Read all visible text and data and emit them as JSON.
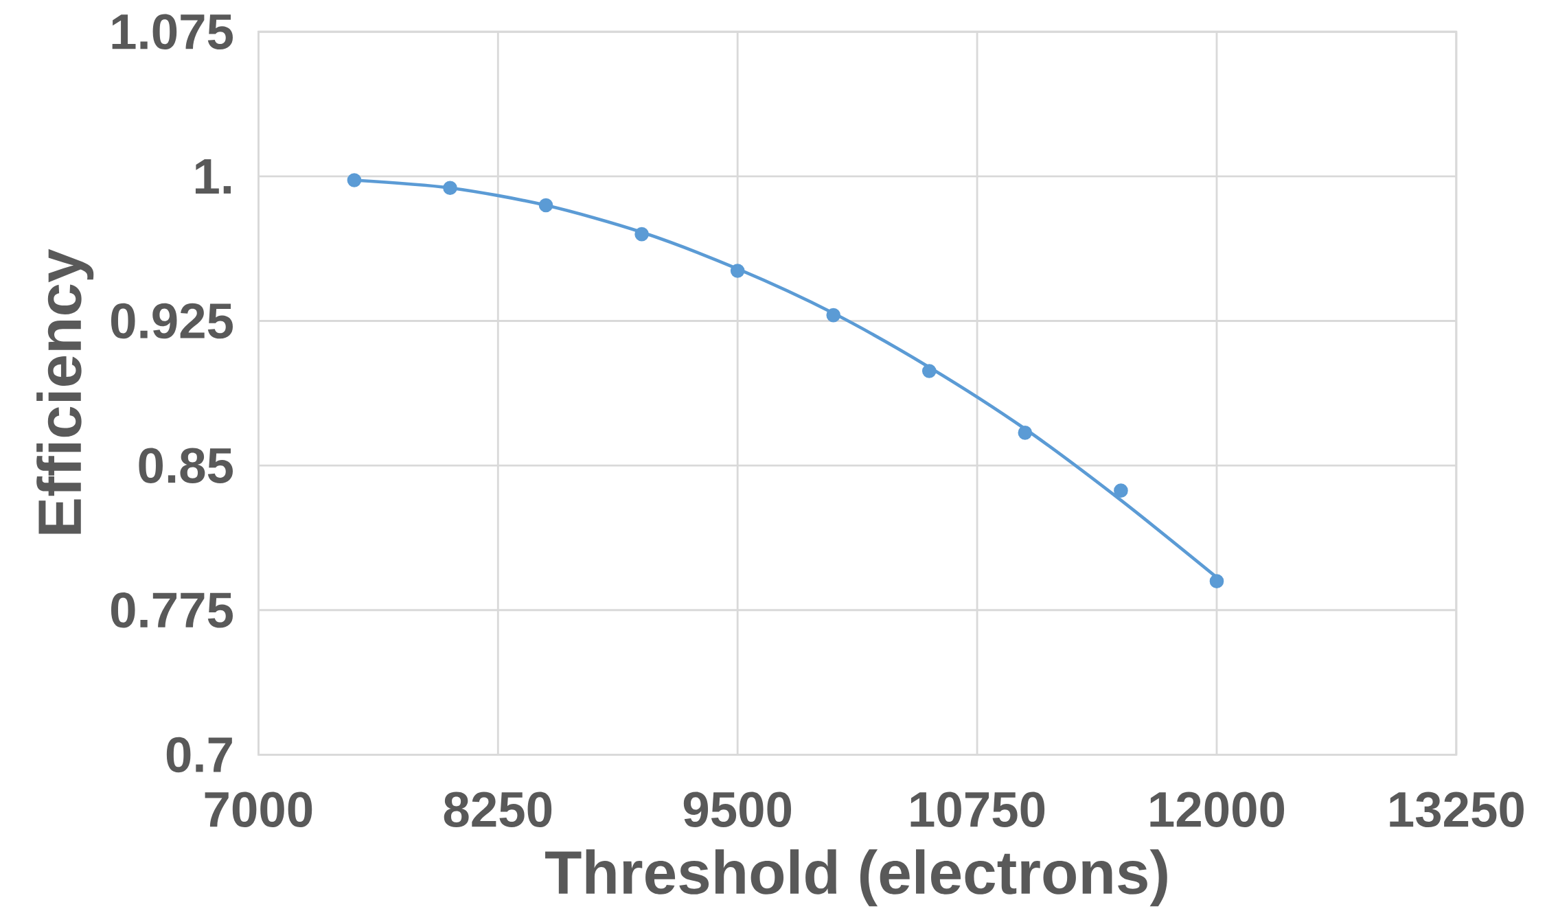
{
  "chart_data": {
    "type": "scatter",
    "xlabel": "Threshold (electrons)",
    "ylabel": "Efficiency",
    "xlim": [
      7000,
      13250
    ],
    "ylim": [
      0.7,
      1.075
    ],
    "xticks": [
      7000,
      8250,
      9500,
      10750,
      12000,
      13250
    ],
    "yticks": [
      0.7,
      0.775,
      0.85,
      0.925,
      {
        "value": 1,
        "label": "1."
      },
      1.075
    ],
    "grid": true,
    "series": [
      {
        "marker": "circle",
        "color": "#5b9bd5",
        "x": [
          7500,
          8000,
          8500,
          9000,
          9500,
          10000,
          10500,
          11000,
          11500,
          12000
        ],
        "values": [
          0.998,
          0.994,
          0.985,
          0.97,
          0.951,
          0.928,
          0.899,
          0.867,
          0.837,
          0.79
        ]
      },
      {
        "type": "line",
        "marker": "none",
        "color": "#5b9bd5",
        "line_style": "solid",
        "x": [
          7500,
          8000,
          8500,
          9000,
          9500,
          10000,
          10500,
          11000,
          11500,
          12000
        ],
        "values": [
          0.998,
          0.994,
          0.985,
          0.971,
          0.952,
          0.929,
          0.901,
          0.869,
          0.832,
          0.792
        ]
      }
    ]
  }
}
